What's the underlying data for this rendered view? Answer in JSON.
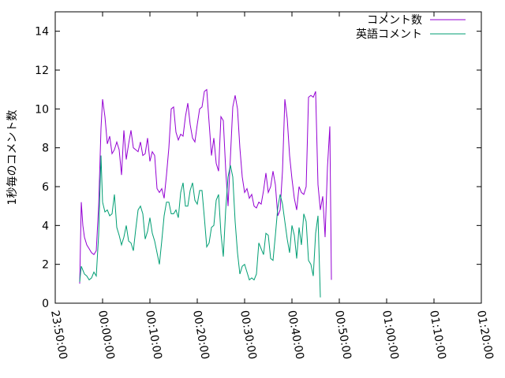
{
  "chart_data": {
    "type": "line",
    "title": "",
    "xlabel": "",
    "ylabel": "1秒毎のコメント数",
    "xlim": [
      "23:50:00",
      "01:20:00"
    ],
    "ylim": [
      0,
      15
    ],
    "x_ticks": [
      "23:50:00",
      "00:00:00",
      "00:10:00",
      "00:20:00",
      "00:30:00",
      "00:40:00",
      "00:50:00",
      "01:00:00",
      "01:10:00",
      "01:20:00"
    ],
    "y_ticks": [
      "0",
      "2",
      "4",
      "6",
      "8",
      "10",
      "12",
      "14"
    ],
    "grid": false,
    "legend_position": "top-right",
    "series": [
      {
        "name": "コメント数",
        "color": "#9400d3",
        "points": [
          [
            "23:55:10",
            1.0
          ],
          [
            "23:55:30",
            5.2
          ],
          [
            "23:55:50",
            4.0
          ],
          [
            "23:56:10",
            3.4
          ],
          [
            "23:56:40",
            3.0
          ],
          [
            "23:57:10",
            2.8
          ],
          [
            "23:57:40",
            2.6
          ],
          [
            "23:58:10",
            2.5
          ],
          [
            "23:58:40",
            2.7
          ],
          [
            "23:59:10",
            5.0
          ],
          [
            "23:59:40",
            9.0
          ],
          [
            "00:00:00",
            10.5
          ],
          [
            "00:00:30",
            9.6
          ],
          [
            "00:01:00",
            8.2
          ],
          [
            "00:01:30",
            8.6
          ],
          [
            "00:02:00",
            7.7
          ],
          [
            "00:02:30",
            7.9
          ],
          [
            "00:03:00",
            8.3
          ],
          [
            "00:03:30",
            7.9
          ],
          [
            "00:04:00",
            6.6
          ],
          [
            "00:04:30",
            8.9
          ],
          [
            "00:05:00",
            7.4
          ],
          [
            "00:05:30",
            8.2
          ],
          [
            "00:06:00",
            8.9
          ],
          [
            "00:06:30",
            8.0
          ],
          [
            "00:07:00",
            7.9
          ],
          [
            "00:07:30",
            7.8
          ],
          [
            "00:08:00",
            8.3
          ],
          [
            "00:08:30",
            7.6
          ],
          [
            "00:09:00",
            7.7
          ],
          [
            "00:09:30",
            8.5
          ],
          [
            "00:10:00",
            7.3
          ],
          [
            "00:10:30",
            7.8
          ],
          [
            "00:11:00",
            7.6
          ],
          [
            "00:11:30",
            5.9
          ],
          [
            "00:12:00",
            5.7
          ],
          [
            "00:12:30",
            5.9
          ],
          [
            "00:13:00",
            5.4
          ],
          [
            "00:13:30",
            6.6
          ],
          [
            "00:14:00",
            8.0
          ],
          [
            "00:14:30",
            10.0
          ],
          [
            "00:15:00",
            10.1
          ],
          [
            "00:15:30",
            8.8
          ],
          [
            "00:16:00",
            8.4
          ],
          [
            "00:16:30",
            8.7
          ],
          [
            "00:17:00",
            8.6
          ],
          [
            "00:17:30",
            9.6
          ],
          [
            "00:18:00",
            10.3
          ],
          [
            "00:18:30",
            9.2
          ],
          [
            "00:19:00",
            8.5
          ],
          [
            "00:19:30",
            8.3
          ],
          [
            "00:20:00",
            9.2
          ],
          [
            "00:20:30",
            10.0
          ],
          [
            "00:21:00",
            10.1
          ],
          [
            "00:21:30",
            10.9
          ],
          [
            "00:22:00",
            11.0
          ],
          [
            "00:22:30",
            9.3
          ],
          [
            "00:23:00",
            7.6
          ],
          [
            "00:23:30",
            8.5
          ],
          [
            "00:24:00",
            7.2
          ],
          [
            "00:24:30",
            6.8
          ],
          [
            "00:25:00",
            9.6
          ],
          [
            "00:25:30",
            9.4
          ],
          [
            "00:26:00",
            6.9
          ],
          [
            "00:26:30",
            5.0
          ],
          [
            "00:27:00",
            7.5
          ],
          [
            "00:27:30",
            10.1
          ],
          [
            "00:28:00",
            10.7
          ],
          [
            "00:28:30",
            10.0
          ],
          [
            "00:29:00",
            8.0
          ],
          [
            "00:29:30",
            6.5
          ],
          [
            "00:30:00",
            5.7
          ],
          [
            "00:30:30",
            5.9
          ],
          [
            "00:31:00",
            5.4
          ],
          [
            "00:31:30",
            5.6
          ],
          [
            "00:32:00",
            5.0
          ],
          [
            "00:32:30",
            4.9
          ],
          [
            "00:33:00",
            5.2
          ],
          [
            "00:33:30",
            5.1
          ],
          [
            "00:34:00",
            5.8
          ],
          [
            "00:34:30",
            6.7
          ],
          [
            "00:35:00",
            5.7
          ],
          [
            "00:35:30",
            6.0
          ],
          [
            "00:36:00",
            6.8
          ],
          [
            "00:36:30",
            6.1
          ],
          [
            "00:37:00",
            4.5
          ],
          [
            "00:37:30",
            4.8
          ],
          [
            "00:38:00",
            6.8
          ],
          [
            "00:38:30",
            10.5
          ],
          [
            "00:39:00",
            9.5
          ],
          [
            "00:39:30",
            7.6
          ],
          [
            "00:40:00",
            6.4
          ],
          [
            "00:40:30",
            5.4
          ],
          [
            "00:41:00",
            4.8
          ],
          [
            "00:41:30",
            6.0
          ],
          [
            "00:42:00",
            5.7
          ],
          [
            "00:42:30",
            5.6
          ],
          [
            "00:43:00",
            6.0
          ],
          [
            "00:43:30",
            10.6
          ],
          [
            "00:44:00",
            10.7
          ],
          [
            "00:44:30",
            10.6
          ],
          [
            "00:45:00",
            10.9
          ],
          [
            "00:45:30",
            6.1
          ],
          [
            "00:46:00",
            4.8
          ],
          [
            "00:46:30",
            5.5
          ],
          [
            "00:47:00",
            3.4
          ],
          [
            "00:47:30",
            7.0
          ],
          [
            "00:48:00",
            9.1
          ],
          [
            "00:48:20",
            1.2
          ]
        ]
      },
      {
        "name": "英語コメント",
        "color": "#009e73",
        "points": [
          [
            "23:55:10",
            1.1
          ],
          [
            "23:55:30",
            1.9
          ],
          [
            "23:55:50",
            1.7
          ],
          [
            "23:56:10",
            1.5
          ],
          [
            "23:56:40",
            1.4
          ],
          [
            "23:57:10",
            1.2
          ],
          [
            "23:57:40",
            1.3
          ],
          [
            "23:58:10",
            1.6
          ],
          [
            "23:58:40",
            1.4
          ],
          [
            "23:59:10",
            3.5
          ],
          [
            "23:59:40",
            7.6
          ],
          [
            "00:00:00",
            5.2
          ],
          [
            "00:00:30",
            4.7
          ],
          [
            "00:01:00",
            4.8
          ],
          [
            "00:01:30",
            4.5
          ],
          [
            "00:02:00",
            4.6
          ],
          [
            "00:02:30",
            5.6
          ],
          [
            "00:03:00",
            3.9
          ],
          [
            "00:03:30",
            3.5
          ],
          [
            "00:04:00",
            3.0
          ],
          [
            "00:04:30",
            3.4
          ],
          [
            "00:05:00",
            4.0
          ],
          [
            "00:05:30",
            3.2
          ],
          [
            "00:06:00",
            3.1
          ],
          [
            "00:06:30",
            2.7
          ],
          [
            "00:07:00",
            3.8
          ],
          [
            "00:07:30",
            4.8
          ],
          [
            "00:08:00",
            5.0
          ],
          [
            "00:08:30",
            4.6
          ],
          [
            "00:09:00",
            3.3
          ],
          [
            "00:09:30",
            3.7
          ],
          [
            "00:10:00",
            4.4
          ],
          [
            "00:10:30",
            3.6
          ],
          [
            "00:11:00",
            3.2
          ],
          [
            "00:11:30",
            2.6
          ],
          [
            "00:12:00",
            2.0
          ],
          [
            "00:12:30",
            3.2
          ],
          [
            "00:13:00",
            4.5
          ],
          [
            "00:13:30",
            5.2
          ],
          [
            "00:14:00",
            5.2
          ],
          [
            "00:14:30",
            4.6
          ],
          [
            "00:15:00",
            4.6
          ],
          [
            "00:15:30",
            4.8
          ],
          [
            "00:16:00",
            4.4
          ],
          [
            "00:16:30",
            5.7
          ],
          [
            "00:17:00",
            6.2
          ],
          [
            "00:17:30",
            5.0
          ],
          [
            "00:18:00",
            5.0
          ],
          [
            "00:18:30",
            5.8
          ],
          [
            "00:19:00",
            6.2
          ],
          [
            "00:19:30",
            5.3
          ],
          [
            "00:20:00",
            5.1
          ],
          [
            "00:20:30",
            5.8
          ],
          [
            "00:21:00",
            5.8
          ],
          [
            "00:21:30",
            4.4
          ],
          [
            "00:22:00",
            2.9
          ],
          [
            "00:22:30",
            3.1
          ],
          [
            "00:23:00",
            3.9
          ],
          [
            "00:23:30",
            4.0
          ],
          [
            "00:24:00",
            5.3
          ],
          [
            "00:24:30",
            5.6
          ],
          [
            "00:25:00",
            3.6
          ],
          [
            "00:25:30",
            2.4
          ],
          [
            "00:26:00",
            4.8
          ],
          [
            "00:26:30",
            6.5
          ],
          [
            "00:27:00",
            7.1
          ],
          [
            "00:27:30",
            6.5
          ],
          [
            "00:28:00",
            4.2
          ],
          [
            "00:28:30",
            2.6
          ],
          [
            "00:29:00",
            1.5
          ],
          [
            "00:29:30",
            1.9
          ],
          [
            "00:30:00",
            2.0
          ],
          [
            "00:30:30",
            1.6
          ],
          [
            "00:31:00",
            1.2
          ],
          [
            "00:31:30",
            1.3
          ],
          [
            "00:32:00",
            1.2
          ],
          [
            "00:32:30",
            1.5
          ],
          [
            "00:33:00",
            3.1
          ],
          [
            "00:33:30",
            2.8
          ],
          [
            "00:34:00",
            2.5
          ],
          [
            "00:34:30",
            3.6
          ],
          [
            "00:35:00",
            3.5
          ],
          [
            "00:35:30",
            2.3
          ],
          [
            "00:36:00",
            2.2
          ],
          [
            "00:36:30",
            3.5
          ],
          [
            "00:37:00",
            4.9
          ],
          [
            "00:37:30",
            5.6
          ],
          [
            "00:38:00",
            5.1
          ],
          [
            "00:38:30",
            4.2
          ],
          [
            "00:39:00",
            3.3
          ],
          [
            "00:39:30",
            2.6
          ],
          [
            "00:40:00",
            4.0
          ],
          [
            "00:40:30",
            3.5
          ],
          [
            "00:41:00",
            2.3
          ],
          [
            "00:41:30",
            3.9
          ],
          [
            "00:42:00",
            3.0
          ],
          [
            "00:42:30",
            4.6
          ],
          [
            "00:43:00",
            4.2
          ],
          [
            "00:43:30",
            2.2
          ],
          [
            "00:44:00",
            2.0
          ],
          [
            "00:44:30",
            1.4
          ],
          [
            "00:45:00",
            3.6
          ],
          [
            "00:45:30",
            4.5
          ],
          [
            "00:46:00",
            0.3
          ]
        ]
      }
    ]
  }
}
